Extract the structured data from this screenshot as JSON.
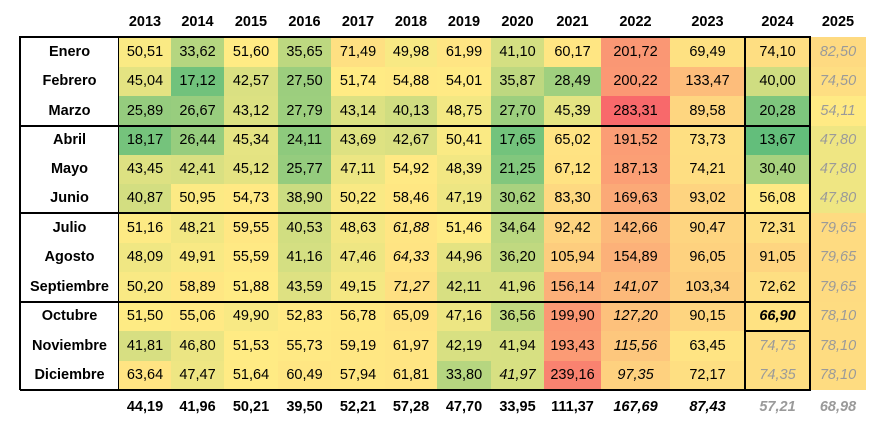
{
  "years": [
    "2013",
    "2014",
    "2015",
    "2016",
    "2017",
    "2018",
    "2019",
    "2020",
    "2021",
    "2022",
    "2023",
    "2024",
    "2025"
  ],
  "months": [
    "Enero",
    "Febrero",
    "Marzo",
    "Abril",
    "Mayo",
    "Junio",
    "Julio",
    "Agosto",
    "Septiembre",
    "Octubre",
    "Noviembre",
    "Diciembre"
  ],
  "rows": [
    [
      "50,51",
      "33,62",
      "51,60",
      "35,65",
      "71,49",
      "49,98",
      "61,99",
      "41,10",
      "60,17",
      "201,72",
      "69,49",
      "74,10",
      "82,50"
    ],
    [
      "45,04",
      "17,12",
      "42,57",
      "27,50",
      "51,74",
      "54,88",
      "54,01",
      "35,87",
      "28,49",
      "200,22",
      "133,47",
      "40,00",
      "74,50"
    ],
    [
      "25,89",
      "26,67",
      "43,12",
      "27,79",
      "43,14",
      "40,13",
      "48,75",
      "27,70",
      "45,39",
      "283,31",
      "89,58",
      "20,28",
      "54,11"
    ],
    [
      "18,17",
      "26,44",
      "45,34",
      "24,11",
      "43,69",
      "42,67",
      "50,41",
      "17,65",
      "65,02",
      "191,52",
      "73,73",
      "13,67",
      "47,80"
    ],
    [
      "43,45",
      "42,41",
      "45,12",
      "25,77",
      "47,11",
      "54,92",
      "48,39",
      "21,25",
      "67,12",
      "187,13",
      "74,21",
      "30,40",
      "47,80"
    ],
    [
      "40,87",
      "50,95",
      "54,73",
      "38,90",
      "50,22",
      "58,46",
      "47,19",
      "30,62",
      "83,30",
      "169,63",
      "93,02",
      "56,08",
      "47,80"
    ],
    [
      "51,16",
      "48,21",
      "59,55",
      "40,53",
      "48,63",
      "61,88",
      "51,46",
      "34,64",
      "92,42",
      "142,66",
      "90,47",
      "72,31",
      "79,65"
    ],
    [
      "48,09",
      "49,91",
      "55,59",
      "41,16",
      "47,46",
      "64,33",
      "44,96",
      "36,20",
      "105,94",
      "154,89",
      "96,05",
      "91,05",
      "79,65"
    ],
    [
      "50,20",
      "58,89",
      "51,88",
      "43,59",
      "49,15",
      "71,27",
      "42,11",
      "41,96",
      "156,14",
      "141,07",
      "103,34",
      "72,62",
      "79,65"
    ],
    [
      "51,50",
      "55,06",
      "49,90",
      "52,83",
      "56,78",
      "65,09",
      "47,16",
      "36,56",
      "199,90",
      "127,20",
      "90,15",
      "66,90",
      "78,10"
    ],
    [
      "41,81",
      "46,80",
      "51,53",
      "55,73",
      "59,19",
      "61,97",
      "42,19",
      "41,94",
      "193,43",
      "115,56",
      "63,45",
      "74,75",
      "78,10"
    ],
    [
      "63,64",
      "47,47",
      "51,64",
      "60,49",
      "57,94",
      "61,81",
      "33,80",
      "41,97",
      "239,16",
      "97,35",
      "72,17",
      "74,35",
      "78,10"
    ]
  ],
  "totals": [
    "44,19",
    "41,96",
    "50,21",
    "39,50",
    "52,21",
    "57,28",
    "47,70",
    "33,95",
    "111,37",
    "167,69",
    "87,43",
    "57,21",
    "68,98"
  ],
  "italic_cells": [
    [
      6,
      5
    ],
    [
      7,
      5
    ],
    [
      8,
      5
    ],
    [
      8,
      9
    ],
    [
      9,
      9
    ],
    [
      10,
      9
    ],
    [
      11,
      9
    ],
    [
      11,
      7
    ]
  ],
  "bold_italic_cells": [
    [
      9,
      11
    ]
  ],
  "grey_cells": [
    [
      10,
      11
    ],
    [
      11,
      11
    ]
  ],
  "italic_totals": [
    9,
    10
  ],
  "grey_totals": [
    11,
    12
  ],
  "grey_column": 12,
  "colors": {
    "scale_min": "#63BE7B",
    "scale_mid": "#FFEB84",
    "scale_max": "#F8696B",
    "muted_text": "#9A9A9A"
  }
}
